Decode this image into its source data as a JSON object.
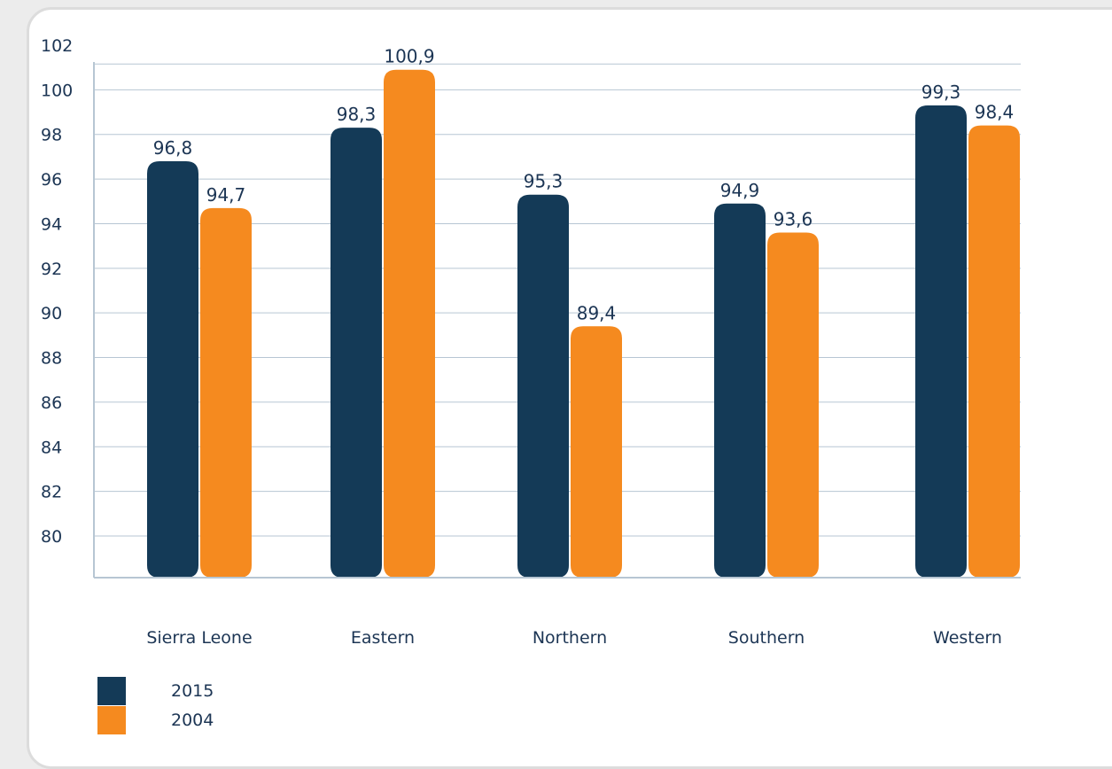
{
  "chart_data": {
    "type": "bar",
    "categories": [
      "Sierra Leone",
      "Eastern",
      "Northern",
      "Southern",
      "Western"
    ],
    "series": [
      {
        "name": "2015",
        "values": [
          96.8,
          98.3,
          95.3,
          94.9,
          99.3
        ],
        "labels": [
          "96,8",
          "98,3",
          "95,3",
          "94,9",
          "99,3"
        ],
        "color": "#143a57"
      },
      {
        "name": "2004",
        "values": [
          94.7,
          100.9,
          89.4,
          93.6,
          98.4
        ],
        "labels": [
          "94,7",
          "100,9",
          "89,4",
          "93,6",
          "98,4"
        ],
        "color": "#f58a1f"
      }
    ],
    "y_ticks": [
      "80",
      "82",
      "84",
      "86",
      "88",
      "90",
      "92",
      "94",
      "96",
      "98",
      "100",
      "102"
    ],
    "ylim": [
      78,
      102
    ],
    "grid": true,
    "legend": "bottom-left"
  }
}
